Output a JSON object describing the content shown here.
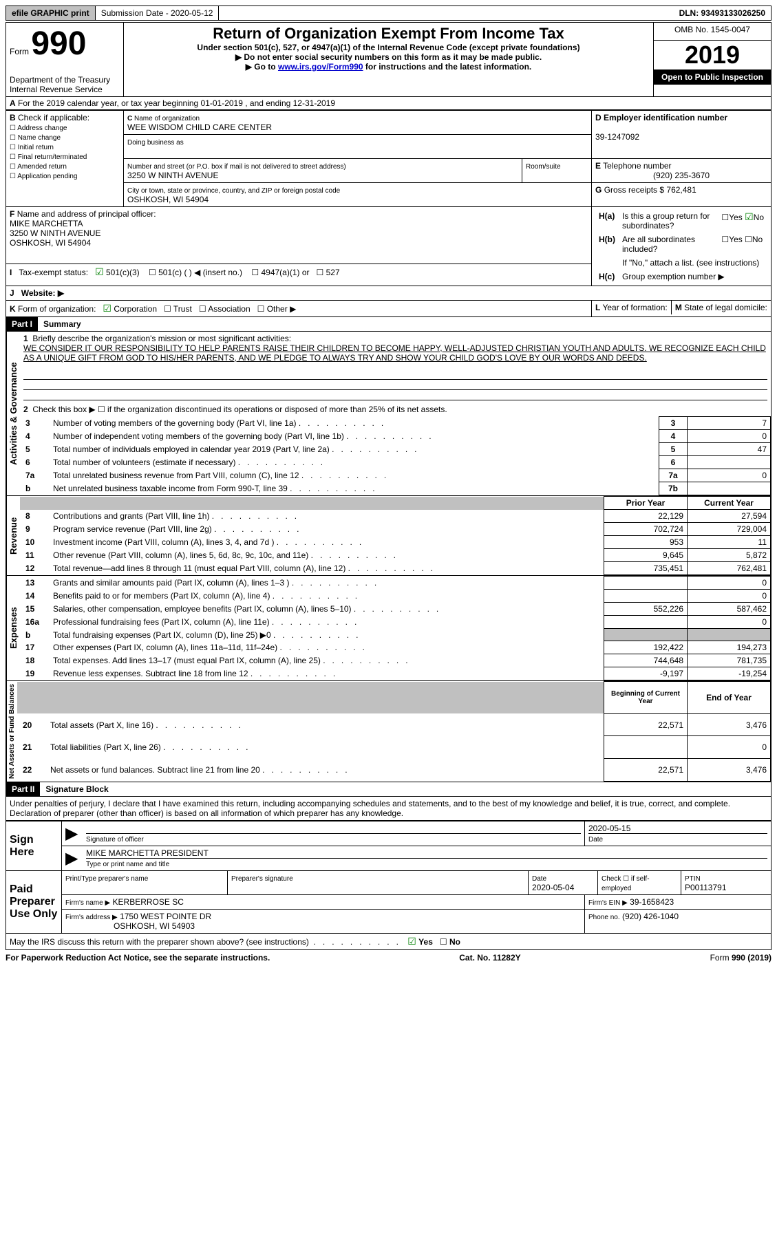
{
  "topbar": {
    "efile": "efile GRAPHIC print",
    "submission": "Submission Date - 2020-05-12",
    "dln": "DLN: 93493133026250"
  },
  "header": {
    "form_word": "Form",
    "form_num": "990",
    "dept": "Department of the Treasury\nInternal Revenue Service",
    "title": "Return of Organization Exempt From Income Tax",
    "subtitle": "Under section 501(c), 527, or 4947(a)(1) of the Internal Revenue Code (except private foundations)",
    "note1": "Do not enter social security numbers on this form as it may be made public.",
    "note2_pre": "Go to ",
    "note2_link": "www.irs.gov/Form990",
    "note2_post": " for instructions and the latest information.",
    "omb": "OMB No. 1545-0047",
    "year": "2019",
    "open": "Open to Public Inspection"
  },
  "periodA": "For the 2019 calendar year, or tax year beginning 01-01-2019   , and ending 12-31-2019",
  "boxB": {
    "label": "Check if applicable:",
    "opts": [
      "Address change",
      "Name change",
      "Initial return",
      "Final return/terminated",
      "Amended return",
      "Application pending"
    ]
  },
  "boxC": {
    "label": "Name of organization",
    "name": "WEE WISDOM CHILD CARE CENTER",
    "dba_label": "Doing business as",
    "addr_label": "Number and street (or P.O. box if mail is not delivered to street address)",
    "room_label": "Room/suite",
    "addr": "3250 W NINTH AVENUE",
    "city_label": "City or town, state or province, country, and ZIP or foreign postal code",
    "city": "OSHKOSH, WI  54904"
  },
  "boxD": {
    "label": "Employer identification number",
    "val": "39-1247092"
  },
  "boxE": {
    "label": "Telephone number",
    "val": "(920) 235-3670"
  },
  "boxG": {
    "label": "Gross receipts $",
    "val": "762,481"
  },
  "boxF": {
    "label": "Name and address of principal officer:",
    "name": "MIKE MARCHETTA",
    "addr1": "3250 W NINTH AVENUE",
    "addr2": "OSHKOSH, WI  54904"
  },
  "boxH": {
    "a_label": "Is this a group return for subordinates?",
    "b_label": "Are all subordinates included?",
    "b_note": "If \"No,\" attach a list. (see instructions)",
    "c_label": "Group exemption number ▶",
    "yes": "Yes",
    "no": "No"
  },
  "lineI": {
    "label": "Tax-exempt status:",
    "opts": [
      "501(c)(3)",
      "501(c) (  ) ◀ (insert no.)",
      "4947(a)(1) or",
      "527"
    ]
  },
  "lineJ": "Website: ▶",
  "lineK": {
    "label": "Form of organization:",
    "opts": [
      "Corporation",
      "Trust",
      "Association",
      "Other ▶"
    ]
  },
  "lineL": "Year of formation:",
  "lineM": "State of legal domicile:",
  "part1": {
    "header": "Part I",
    "title": "Summary",
    "q1_label": "Briefly describe the organization's mission or most significant activities:",
    "q1_text": "WE CONSIDER IT OUR RESPONSIBILITY TO HELP PARENTS RAISE THEIR CHILDREN TO BECOME HAPPY, WELL-ADJUSTED CHRISTIAN YOUTH AND ADULTS. WE RECOGNIZE EACH CHILD AS A UNIQUE GIFT FROM GOD TO HIS/HER PARENTS, AND WE PLEDGE TO ALWAYS TRY AND SHOW YOUR CHILD GOD'S LOVE BY OUR WORDS AND DEEDS.",
    "q2": "Check this box ▶ ☐  if the organization discontinued its operations or disposed of more than 25% of its net assets.",
    "gov_lines": [
      {
        "n": "3",
        "t": "Number of voting members of the governing body (Part VI, line 1a)",
        "box": "3",
        "v": "7"
      },
      {
        "n": "4",
        "t": "Number of independent voting members of the governing body (Part VI, line 1b)",
        "box": "4",
        "v": "0"
      },
      {
        "n": "5",
        "t": "Total number of individuals employed in calendar year 2019 (Part V, line 2a)",
        "box": "5",
        "v": "47"
      },
      {
        "n": "6",
        "t": "Total number of volunteers (estimate if necessary)",
        "box": "6",
        "v": ""
      },
      {
        "n": "7a",
        "t": "Total unrelated business revenue from Part VIII, column (C), line 12",
        "box": "7a",
        "v": "0"
      },
      {
        "n": "b",
        "t": "Net unrelated business taxable income from Form 990-T, line 39",
        "box": "7b",
        "v": ""
      }
    ],
    "col_prior": "Prior Year",
    "col_curr": "Current Year",
    "rev_lines": [
      {
        "n": "8",
        "t": "Contributions and grants (Part VIII, line 1h)",
        "p": "22,129",
        "c": "27,594"
      },
      {
        "n": "9",
        "t": "Program service revenue (Part VIII, line 2g)",
        "p": "702,724",
        "c": "729,004"
      },
      {
        "n": "10",
        "t": "Investment income (Part VIII, column (A), lines 3, 4, and 7d )",
        "p": "953",
        "c": "11"
      },
      {
        "n": "11",
        "t": "Other revenue (Part VIII, column (A), lines 5, 6d, 8c, 9c, 10c, and 11e)",
        "p": "9,645",
        "c": "5,872"
      },
      {
        "n": "12",
        "t": "Total revenue—add lines 8 through 11 (must equal Part VIII, column (A), line 12)",
        "p": "735,451",
        "c": "762,481"
      }
    ],
    "exp_lines": [
      {
        "n": "13",
        "t": "Grants and similar amounts paid (Part IX, column (A), lines 1–3 )",
        "p": "",
        "c": "0"
      },
      {
        "n": "14",
        "t": "Benefits paid to or for members (Part IX, column (A), line 4)",
        "p": "",
        "c": "0"
      },
      {
        "n": "15",
        "t": "Salaries, other compensation, employee benefits (Part IX, column (A), lines 5–10)",
        "p": "552,226",
        "c": "587,462"
      },
      {
        "n": "16a",
        "t": "Professional fundraising fees (Part IX, column (A), line 11e)",
        "p": "",
        "c": "0"
      },
      {
        "n": "b",
        "t": "Total fundraising expenses (Part IX, column (D), line 25) ▶0",
        "p": "grey",
        "c": "grey"
      },
      {
        "n": "17",
        "t": "Other expenses (Part IX, column (A), lines 11a–11d, 11f–24e)",
        "p": "192,422",
        "c": "194,273"
      },
      {
        "n": "18",
        "t": "Total expenses. Add lines 13–17 (must equal Part IX, column (A), line 25)",
        "p": "744,648",
        "c": "781,735"
      },
      {
        "n": "19",
        "t": "Revenue less expenses. Subtract line 18 from line 12",
        "p": "-9,197",
        "c": "-19,254"
      }
    ],
    "col_begin": "Beginning of Current Year",
    "col_end": "End of Year",
    "bal_lines": [
      {
        "n": "20",
        "t": "Total assets (Part X, line 16)",
        "p": "22,571",
        "c": "3,476"
      },
      {
        "n": "21",
        "t": "Total liabilities (Part X, line 26)",
        "p": "",
        "c": "0"
      },
      {
        "n": "22",
        "t": "Net assets or fund balances. Subtract line 21 from line 20",
        "p": "22,571",
        "c": "3,476"
      }
    ],
    "vlabels": {
      "gov": "Activities & Governance",
      "rev": "Revenue",
      "exp": "Expenses",
      "bal": "Net Assets or Fund Balances"
    }
  },
  "part2": {
    "header": "Part II",
    "title": "Signature Block",
    "decl": "Under penalties of perjury, I declare that I have examined this return, including accompanying schedules and statements, and to the best of my knowledge and belief, it is true, correct, and complete. Declaration of preparer (other than officer) is based on all information of which preparer has any knowledge.",
    "sign_here": "Sign Here",
    "sig_officer": "Signature of officer",
    "sig_date": "2020-05-15",
    "sig_date_label": "Date",
    "sig_name": "MIKE MARCHETTA PRESIDENT",
    "sig_name_label": "Type or print name and title",
    "paid": "Paid Preparer Use Only",
    "p_name_label": "Print/Type preparer's name",
    "p_sig_label": "Preparer's signature",
    "p_date_label": "Date",
    "p_date": "2020-05-04",
    "p_check": "Check ☐ if self-employed",
    "p_ptin_label": "PTIN",
    "p_ptin": "P00113791",
    "p_firm_label": "Firm's name   ▶",
    "p_firm": "KERBERROSE SC",
    "p_ein_label": "Firm's EIN ▶",
    "p_ein": "39-1658423",
    "p_addr_label": "Firm's address ▶",
    "p_addr1": "1750 WEST POINTE DR",
    "p_addr2": "OSHKOSH, WI  54903",
    "p_phone_label": "Phone no.",
    "p_phone": "(920) 426-1040",
    "discuss": "May the IRS discuss this return with the preparer shown above? (see instructions)"
  },
  "footer": {
    "left": "For Paperwork Reduction Act Notice, see the separate instructions.",
    "mid": "Cat. No. 11282Y",
    "right": "Form 990 (2019)"
  }
}
